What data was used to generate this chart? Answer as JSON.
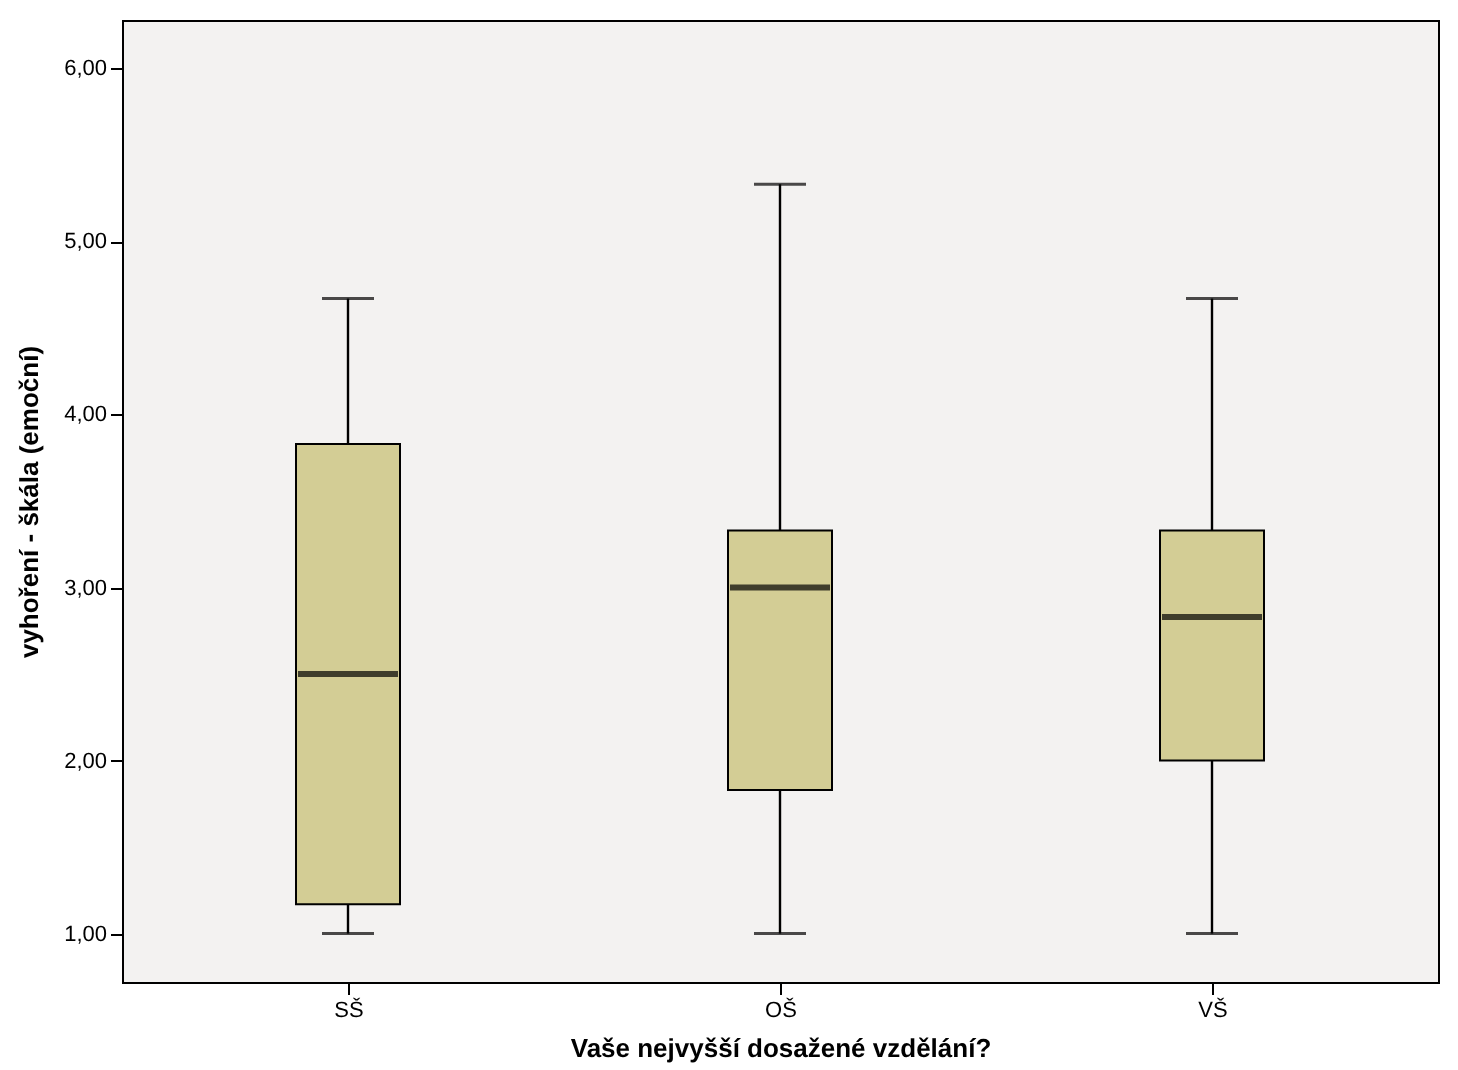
{
  "chart_data": {
    "type": "box",
    "xlabel": "Vaše nejvyšší dosažené vzdělání?",
    "ylabel": "vyhoření - škála (emoční)",
    "categories": [
      "SŠ",
      "OŠ",
      "VŠ"
    ],
    "boxes": [
      {
        "low": 1.0,
        "q1": 1.17,
        "median": 2.5,
        "q3": 3.83,
        "high": 4.67
      },
      {
        "low": 1.0,
        "q1": 1.83,
        "median": 3.0,
        "q3": 3.33,
        "high": 5.33
      },
      {
        "low": 1.0,
        "q1": 2.0,
        "median": 2.83,
        "q3": 3.33,
        "high": 4.67
      }
    ],
    "color": "#d3cd95",
    "ylim": [
      0.72,
      6.28
    ],
    "yticks": [
      {
        "value": 1,
        "label": "1,00"
      },
      {
        "value": 2,
        "label": "2,00"
      },
      {
        "value": 3,
        "label": "3,00"
      },
      {
        "value": 4,
        "label": "4,00"
      },
      {
        "value": 5,
        "label": "5,00"
      },
      {
        "value": 6,
        "label": "6,00"
      }
    ],
    "grid": false
  }
}
